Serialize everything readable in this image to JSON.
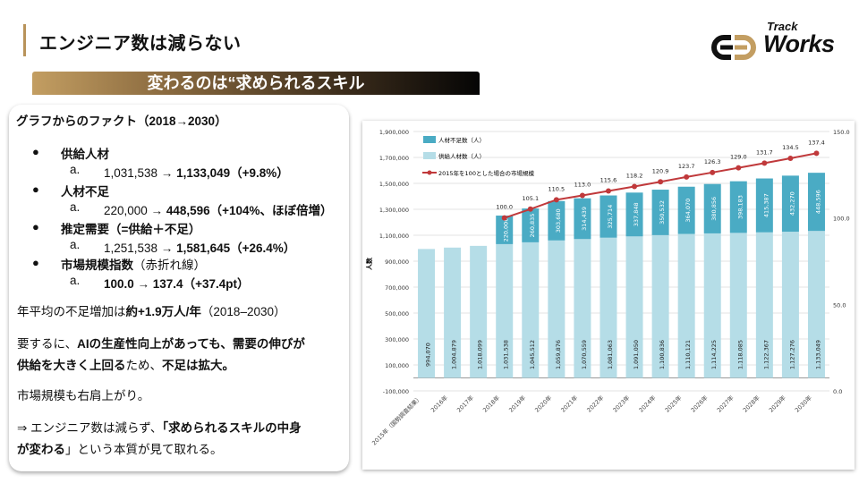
{
  "header": {
    "title": "エンジニア数は減らない",
    "banner": "変わるのは“求められるスキル"
  },
  "logo": {
    "line1": "Track",
    "line2": "Works",
    "colors": {
      "dark": "#111111",
      "gold": "#c39e62"
    }
  },
  "card": {
    "heading": [
      {
        "t": "グラフからのファクト",
        "b": true
      },
      {
        "t": "（2018→2030）",
        "b": true
      }
    ],
    "bullets": [
      {
        "label": [
          {
            "t": "供給人材",
            "b": true
          }
        ],
        "sub_marker": "a.",
        "sub": [
          {
            "t": "1,031,538 → ",
            "b": false
          },
          {
            "t": "1,133,049（+9.8%）",
            "b": true
          }
        ]
      },
      {
        "label": [
          {
            "t": "人材不足",
            "b": true
          }
        ],
        "sub_marker": "a.",
        "sub": [
          {
            "t": "220,000 → ",
            "b": false
          },
          {
            "t": "448,596（+104%、ほぼ倍増）",
            "b": true
          }
        ]
      },
      {
        "label": [
          {
            "t": "推定需要（=供給＋不足）",
            "b": true
          }
        ],
        "sub_marker": "a.",
        "sub": [
          {
            "t": "1,251,538 → ",
            "b": false
          },
          {
            "t": "1,581,645（+26.4%）",
            "b": true
          }
        ]
      },
      {
        "label": [
          {
            "t": "市場規模指数",
            "b": true
          },
          {
            "t": "（赤折れ線）",
            "b": false
          }
        ],
        "sub_marker": "a.",
        "sub": [
          {
            "t": "100.0 → 137.4（+37.4pt）",
            "b": true
          }
        ]
      }
    ],
    "bullet_symbol": "●",
    "paragraphs": [
      [
        [
          {
            "t": "年平均の不足増加は",
            "b": false
          },
          {
            "t": "約+1.9万人/年",
            "b": true
          },
          {
            "t": "（2018–2030）",
            "b": false
          }
        ]
      ],
      [
        [
          {
            "t": "要するに、",
            "b": false
          },
          {
            "t": "AIの生産性向上があっても、需要の伸びが",
            "b": true
          }
        ],
        [
          {
            "t": "供給を大きく上回る",
            "b": true
          },
          {
            "t": "ため、",
            "b": false
          },
          {
            "t": "不足は拡大。",
            "b": true
          }
        ]
      ],
      [
        [
          {
            "t": "市場規模も右肩上がり。",
            "b": false
          }
        ]
      ],
      [
        [
          {
            "t": " ⇒ エンジニア数は減らず、",
            "b": false
          },
          {
            "t": "「求められるスキルの中身",
            "b": true
          }
        ],
        [
          {
            "t": "が変わる",
            "b": true
          },
          {
            "t": "」という本質が見て取れる。",
            "b": false
          }
        ]
      ]
    ]
  },
  "chart_data": {
    "type": "bar",
    "stacked": true,
    "categories": [
      "2015年（国勢調査結果）",
      "2016年",
      "2017年",
      "2018年",
      "2019年",
      "2020年",
      "2021年",
      "2022年",
      "2023年",
      "2024年",
      "2025年",
      "2026年",
      "2027年",
      "2028年",
      "2029年",
      "2030年"
    ],
    "ylabel": "人数",
    "ylim": [
      -100000,
      1900000
    ],
    "yticks": [
      "-100,000",
      "100,000",
      "300,000",
      "500,000",
      "700,000",
      "900,000",
      "1,100,000",
      "1,300,000",
      "1,500,000",
      "1,700,000",
      "1,900,000"
    ],
    "y2lim": [
      0,
      150
    ],
    "y2ticks": [
      "0.0",
      "50.0",
      "100.0",
      "150.0"
    ],
    "series": [
      {
        "name": "供給人材数（人）",
        "color": "#b5dde7",
        "values": [
          994070,
          1004879,
          1018099,
          1031538,
          1045512,
          1059876,
          1070559,
          1081063,
          1091050,
          1100836,
          1110121,
          1114225,
          1118085,
          1122367,
          1127276,
          1133049
        ],
        "labels": [
          "994,070",
          "1,004,879",
          "1,018,099",
          "1,031,538",
          "1,045,512",
          "1,059,876",
          "1,070,559",
          "1,081,063",
          "1,091,050",
          "1,100,836",
          "1,110,121",
          "1,114,225",
          "1,118,085",
          "1,122,367",
          "1,127,276",
          "1,133,049"
        ]
      },
      {
        "name": "人材不足数（人）",
        "color": "#4aabc4",
        "values": [
          null,
          null,
          null,
          220000,
          260835,
          303680,
          314439,
          325714,
          337848,
          350532,
          364070,
          380856,
          398183,
          415387,
          432270,
          448596
        ],
        "labels": [
          "",
          "",
          "",
          "220,000",
          "260,835",
          "303,680",
          "314,439",
          "325,714",
          "337,848",
          "350,532",
          "364,070",
          "380,856",
          "398,183",
          "415,387",
          "432,270",
          "448,596"
        ]
      },
      {
        "name": "2015年を100とした場合の市場規模",
        "type": "line",
        "axis": "right",
        "color": "#c0393b",
        "values": [
          null,
          null,
          null,
          100.0,
          105.1,
          110.5,
          113.0,
          115.6,
          118.2,
          120.9,
          123.7,
          126.3,
          129.0,
          131.7,
          134.5,
          137.4
        ],
        "labels": [
          "",
          "",
          "",
          "100.0",
          "105.1",
          "110.5",
          "113.0",
          "115.6",
          "118.2",
          "120.9",
          "123.7",
          "126.3",
          "129.0",
          "131.7",
          "134.5",
          "137.4"
        ]
      }
    ],
    "legend": "top-left",
    "grid": true
  }
}
